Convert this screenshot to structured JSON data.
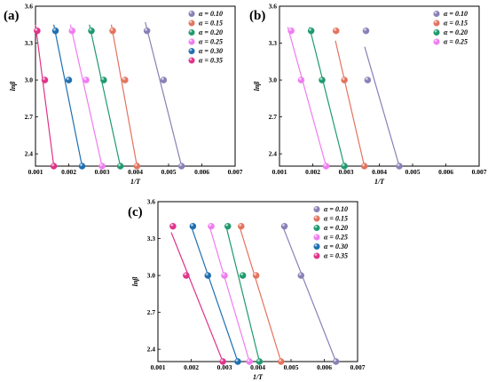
{
  "colors": {
    "a0.10": "#8a7fb6",
    "a0.15": "#e3735e",
    "a0.20": "#1f9a6e",
    "a0.25": "#f07cf0",
    "a0.30": "#1f6fb0",
    "a0.35": "#e0338a"
  },
  "chart_data": [
    {
      "panel": "(a)",
      "type": "scatter",
      "xlabel": "1/T",
      "ylabel": "lnβ",
      "xlim": [
        0.001,
        0.007
      ],
      "ylim": [
        2.3,
        3.6
      ],
      "xticks": [
        "0.001",
        "0.002",
        "0.003",
        "0.004",
        "0.005",
        "0.006",
        "0.007"
      ],
      "yticks": [
        "2.4",
        "2.7",
        "3.0",
        "3.3",
        "3.6"
      ],
      "legend_position": "top-right",
      "series": [
        {
          "name": "α = 0.10",
          "color_key": "a0.10",
          "x": [
            0.00435,
            0.00485,
            0.00539
          ],
          "y": [
            3.4,
            3.0,
            2.3
          ],
          "fit_x": [
            0.0043,
            0.00539
          ],
          "fit_y": [
            3.47,
            2.3
          ]
        },
        {
          "name": "α = 0.15",
          "color_key": "a0.15",
          "x": [
            0.00332,
            0.00369,
            0.00405
          ],
          "y": [
            3.4,
            3.0,
            2.3
          ],
          "fit_x": [
            0.00328,
            0.00405
          ],
          "fit_y": [
            3.45,
            2.3
          ]
        },
        {
          "name": "α = 0.20",
          "color_key": "a0.20",
          "x": [
            0.00268,
            0.00305,
            0.00355
          ],
          "y": [
            3.4,
            3.0,
            2.3
          ],
          "fit_x": [
            0.00262,
            0.00355
          ],
          "fit_y": [
            3.45,
            2.3
          ]
        },
        {
          "name": "α = 0.25",
          "color_key": "a0.25",
          "x": [
            0.0021,
            0.00252,
            0.003
          ],
          "y": [
            3.4,
            3.0,
            2.3
          ],
          "fit_x": [
            0.00205,
            0.003
          ],
          "fit_y": [
            3.45,
            2.3
          ]
        },
        {
          "name": "α = 0.30",
          "color_key": "a0.30",
          "x": [
            0.0016,
            0.002,
            0.0024
          ],
          "y": [
            3.4,
            3.0,
            2.3
          ],
          "fit_x": [
            0.00155,
            0.0024
          ],
          "fit_y": [
            3.45,
            2.3
          ]
        },
        {
          "name": "α = 0.35",
          "color_key": "a0.35",
          "x": [
            0.00105,
            0.00128,
            0.00155
          ],
          "y": [
            3.4,
            3.0,
            2.3
          ],
          "fit_x": [
            0.001,
            0.00155
          ],
          "fit_y": [
            3.45,
            2.3
          ]
        }
      ]
    },
    {
      "panel": "(b)",
      "type": "scatter",
      "xlabel": "1/T",
      "ylabel": "lnβ",
      "xlim": [
        0.001,
        0.007
      ],
      "ylim": [
        2.3,
        3.6
      ],
      "xticks": [
        "0.001",
        "0.002",
        "0.003",
        "0.004",
        "0.005",
        "0.006",
        "0.007"
      ],
      "yticks": [
        "2.4",
        "2.7",
        "3.0",
        "3.3",
        "3.6"
      ],
      "legend_position": "top-right",
      "series": [
        {
          "name": "α = 0.10",
          "color_key": "a0.10",
          "x": [
            0.0036,
            0.00365,
            0.0046
          ],
          "y": [
            3.4,
            3.0,
            2.3
          ],
          "fit_x": [
            0.00356,
            0.0046
          ],
          "fit_y": [
            3.27,
            2.3
          ]
        },
        {
          "name": "α = 0.15",
          "color_key": "a0.15",
          "x": [
            0.0027,
            0.00295,
            0.00355
          ],
          "y": [
            3.4,
            3.0,
            2.3
          ],
          "fit_x": [
            0.00268,
            0.00355
          ],
          "fit_y": [
            3.32,
            2.3
          ]
        },
        {
          "name": "α = 0.20",
          "color_key": "a0.20",
          "x": [
            0.00195,
            0.00228,
            0.00295
          ],
          "y": [
            3.4,
            3.0,
            2.3
          ],
          "fit_x": [
            0.0019,
            0.00295
          ],
          "fit_y": [
            3.43,
            2.3
          ]
        },
        {
          "name": "α = 0.25",
          "color_key": "a0.25",
          "x": [
            0.00135,
            0.00165,
            0.0024
          ],
          "y": [
            3.4,
            3.0,
            2.3
          ],
          "fit_x": [
            0.00125,
            0.0024
          ],
          "fit_y": [
            3.43,
            2.3
          ]
        }
      ]
    },
    {
      "panel": "(c)",
      "type": "scatter",
      "xlabel": "1/T",
      "ylabel": "lnβ",
      "xlim": [
        0.001,
        0.007
      ],
      "ylim": [
        2.3,
        3.6
      ],
      "xticks": [
        "0.001",
        "0.002",
        "0.003",
        "0.004",
        "0.005",
        "0.006",
        "0.007"
      ],
      "yticks": [
        "2.4",
        "2.7",
        "3.0",
        "3.3",
        "3.6"
      ],
      "legend_position": "top-right",
      "series": [
        {
          "name": "α = 0.10",
          "color_key": "a0.10",
          "x": [
            0.0048,
            0.0053,
            0.00635
          ],
          "y": [
            3.4,
            3.0,
            2.3
          ],
          "fit_x": [
            0.00475,
            0.00635
          ],
          "fit_y": [
            3.4,
            2.3
          ]
        },
        {
          "name": "α = 0.15",
          "color_key": "a0.15",
          "x": [
            0.0035,
            0.00395,
            0.0047
          ],
          "y": [
            3.4,
            3.0,
            2.3
          ],
          "fit_x": [
            0.00345,
            0.0047
          ],
          "fit_y": [
            3.4,
            2.3
          ]
        },
        {
          "name": "α = 0.20",
          "color_key": "a0.20",
          "x": [
            0.0031,
            0.00355,
            0.00405
          ],
          "y": [
            3.4,
            3.0,
            2.3
          ],
          "fit_x": [
            0.00305,
            0.00405
          ],
          "fit_y": [
            3.4,
            2.3
          ]
        },
        {
          "name": "α = 0.25",
          "color_key": "a0.25",
          "x": [
            0.0026,
            0.003,
            0.00375
          ],
          "y": [
            3.4,
            3.0,
            2.3
          ],
          "fit_x": [
            0.00255,
            0.00375
          ],
          "fit_y": [
            3.4,
            2.3
          ]
        },
        {
          "name": "α = 0.30",
          "color_key": "a0.30",
          "x": [
            0.00205,
            0.0025,
            0.0034
          ],
          "y": [
            3.4,
            3.0,
            2.3
          ],
          "fit_x": [
            0.002,
            0.0034
          ],
          "fit_y": [
            3.4,
            2.3
          ]
        },
        {
          "name": "α = 0.35",
          "color_key": "a0.35",
          "x": [
            0.00145,
            0.00185,
            0.00295
          ],
          "y": [
            3.4,
            3.0,
            2.3
          ],
          "fit_x": [
            0.0014,
            0.00295
          ],
          "fit_y": [
            3.35,
            2.3
          ]
        }
      ]
    }
  ]
}
